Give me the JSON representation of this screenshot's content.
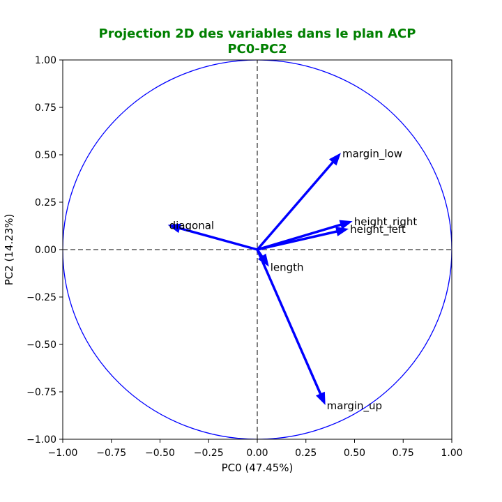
{
  "chart_data": {
    "type": "scatter",
    "title": "Projection 2D des variables dans le plan ACP",
    "subtitle": "PC0-PC2",
    "xlabel": "PC0 (47.45%)",
    "ylabel": "PC2 (14.23%)",
    "xlim": [
      -1.0,
      1.0
    ],
    "ylim": [
      -1.0,
      1.0
    ],
    "xticks": [
      "−1.00",
      "−0.75",
      "−0.50",
      "−0.25",
      "0.00",
      "0.25",
      "0.50",
      "0.75",
      "1.00"
    ],
    "yticks": [
      "−1.00",
      "−0.75",
      "−0.50",
      "−0.25",
      "0.00",
      "0.25",
      "0.50",
      "0.75",
      "1.00"
    ],
    "unit_circle": true,
    "reference_lines": {
      "x": 0,
      "y": 0,
      "style": "dashed"
    },
    "vectors": [
      {
        "label": "diagonal",
        "x": -0.46,
        "y": 0.13
      },
      {
        "label": "margin_low",
        "x": 0.43,
        "y": 0.51
      },
      {
        "label": "height_right",
        "x": 0.49,
        "y": 0.15
      },
      {
        "label": "height_left",
        "x": 0.47,
        "y": 0.11
      },
      {
        "label": "length",
        "x": 0.06,
        "y": -0.09
      },
      {
        "label": "margin_up",
        "x": 0.35,
        "y": -0.82
      }
    ]
  },
  "colors": {
    "title": "#008000",
    "vector": "#0000ff",
    "circle": "#0000ff",
    "reference_line": "#808080",
    "axes": "#000000"
  }
}
